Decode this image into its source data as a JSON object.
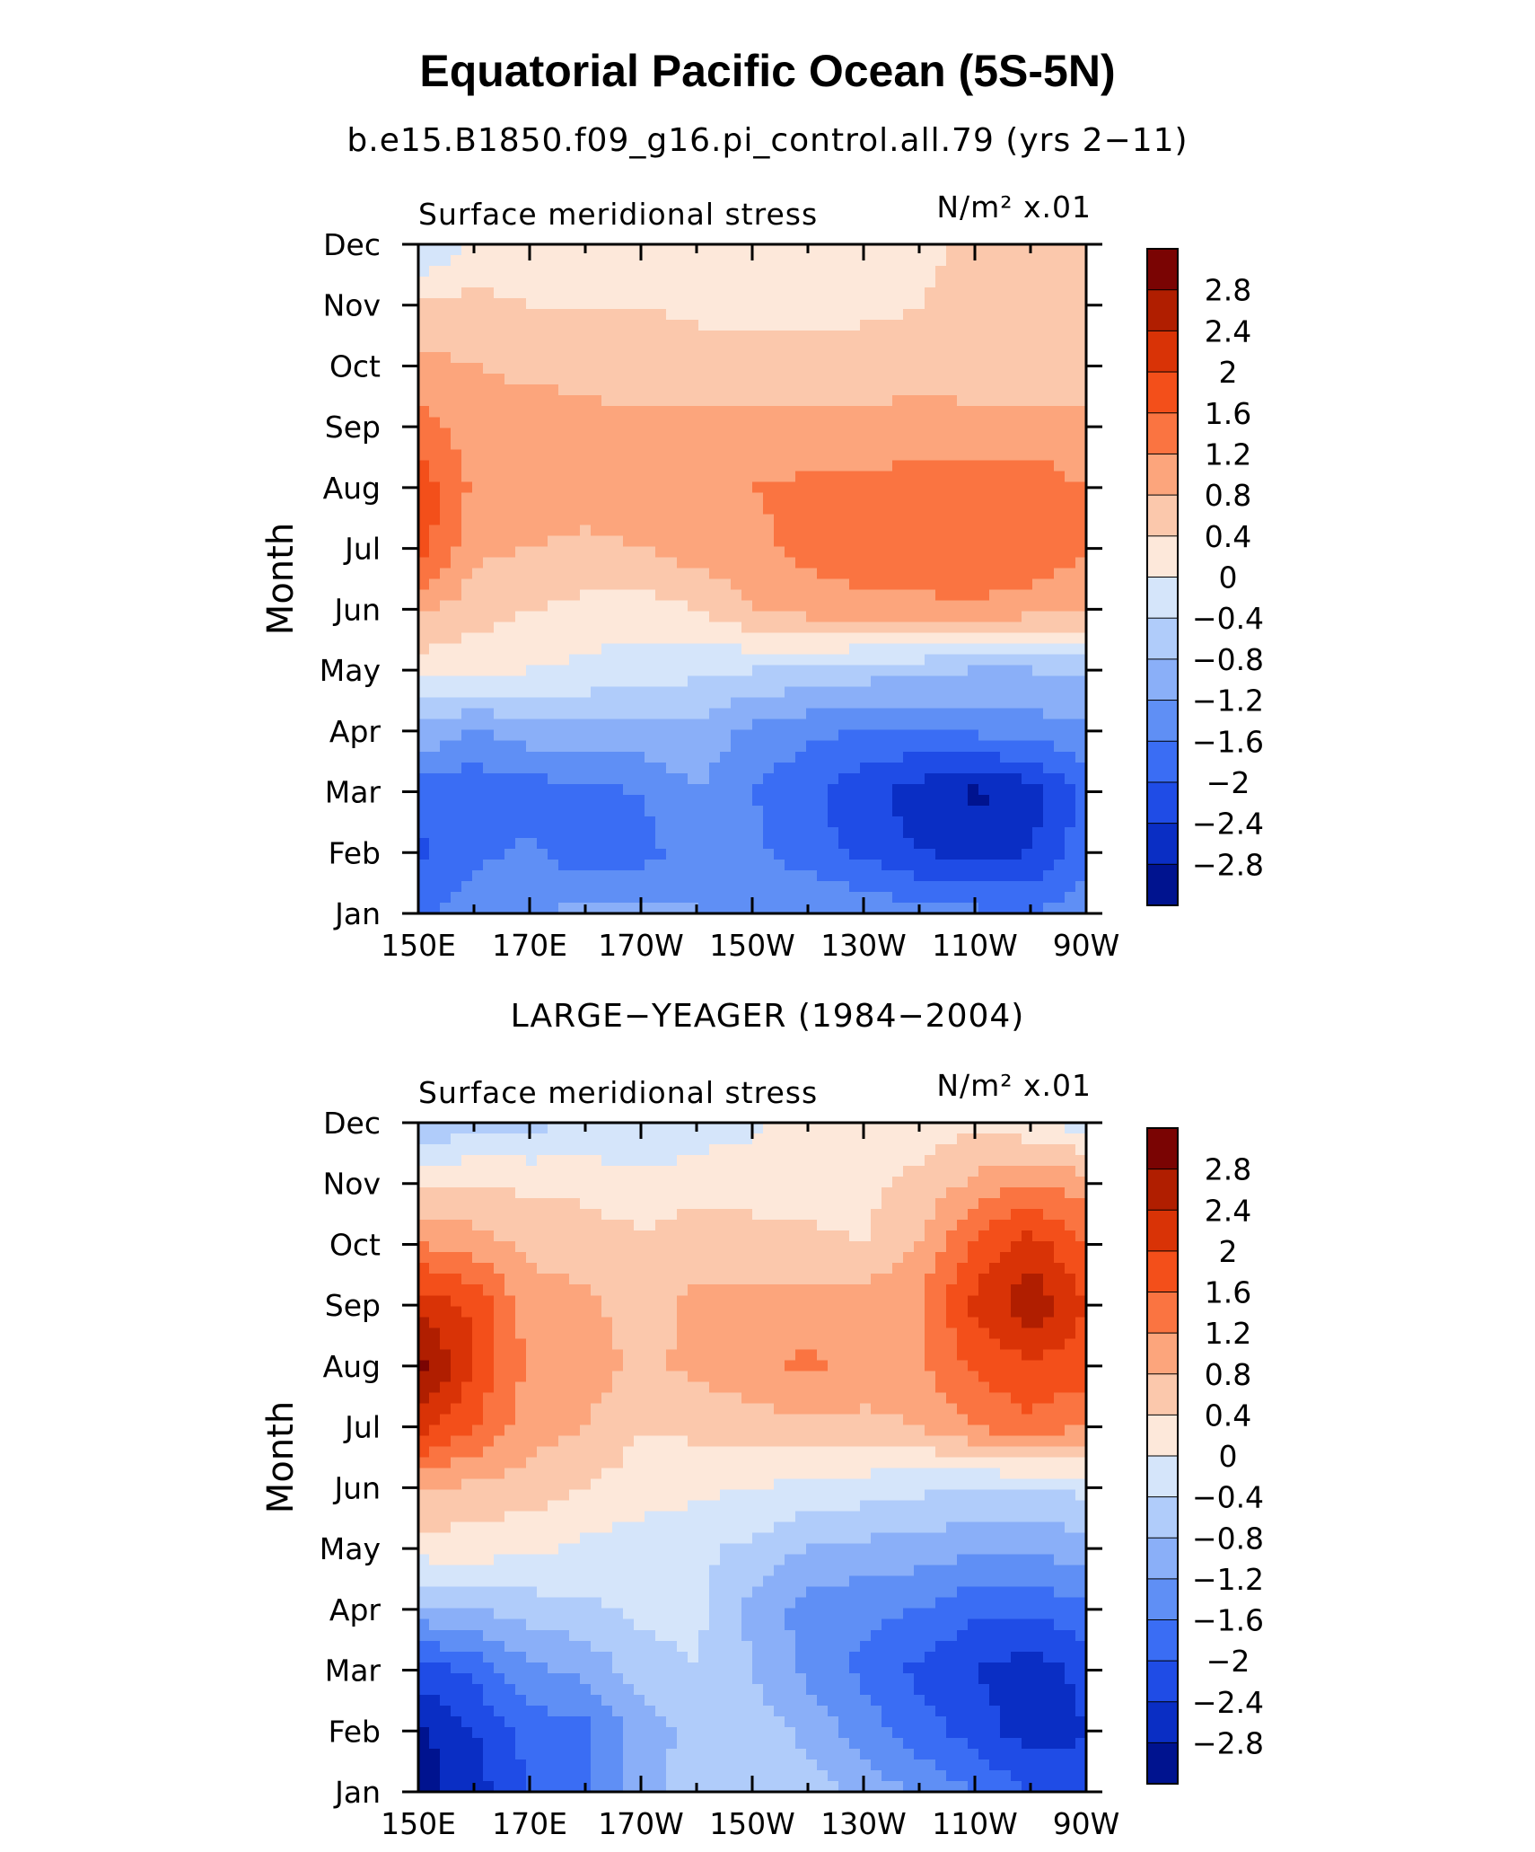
{
  "title": "Equatorial Pacific Ocean (5S-5N)",
  "colorbar": {
    "labels": [
      "2.8",
      "2.4",
      "2",
      "1.6",
      "1.2",
      "0.8",
      "0.4",
      "0",
      "−0.4",
      "−0.8",
      "−1.2",
      "−1.6",
      "−2",
      "−2.4",
      "−2.8"
    ],
    "colors": [
      "#7a0403",
      "#b01e00",
      "#d93306",
      "#f34f1a",
      "#fa7441",
      "#fca57c",
      "#fbc8ac",
      "#fde8da",
      "#d5e5fa",
      "#b0ccfa",
      "#8aaff8",
      "#5f8ff5",
      "#3a6df4",
      "#1f4ce6",
      "#0a2ec4",
      "#00138f"
    ]
  },
  "chart_data": [
    {
      "type": "heatmap",
      "title": "b.e15.B1850.f09_g16.pi_control.all.79 (yrs 2−11)",
      "left_label": "Surface meridional stress",
      "units_label": "N/m² x.01",
      "ylabel": "Month",
      "xlabel": "",
      "x_ticks": [
        "150E",
        "170E",
        "170W",
        "150W",
        "130W",
        "110W",
        "90W"
      ],
      "y_ticks": [
        "Jan",
        "Feb",
        "Mar",
        "Apr",
        "May",
        "Jun",
        "Jul",
        "Aug",
        "Sep",
        "Oct",
        "Nov",
        "Dec"
      ],
      "levels": [
        -2.8,
        -2.4,
        -2,
        -1.6,
        -1.2,
        -0.8,
        -0.4,
        0,
        0.4,
        0.8,
        1.2,
        1.6,
        2,
        2.4,
        2.8
      ],
      "x": [
        150,
        160,
        170,
        180,
        190,
        200,
        210,
        220,
        230,
        240,
        250,
        260,
        270
      ],
      "months": [
        "Jan",
        "Feb",
        "Mar",
        "Apr",
        "May",
        "Jun",
        "Jul",
        "Aug",
        "Sep",
        "Oct",
        "Nov",
        "Dec"
      ],
      "values": [
        [
          -1.8,
          -1.3,
          -1.2,
          -1.1,
          -1.0,
          -1.2,
          -1.3,
          -1.2,
          -1.3,
          -1.4,
          -1.5,
          -1.6,
          -1.3
        ],
        [
          -2.1,
          -1.7,
          -1.5,
          -1.9,
          -1.8,
          -1.3,
          -1.5,
          -1.8,
          -2.1,
          -2.4,
          -2.5,
          -2.4,
          -1.8
        ],
        [
          -1.8,
          -1.9,
          -1.8,
          -1.7,
          -1.6,
          -1.2,
          -1.6,
          -1.9,
          -2.3,
          -2.6,
          -2.9,
          -2.6,
          -1.8
        ],
        [
          -0.9,
          -1.2,
          -1.0,
          -0.9,
          -0.9,
          -0.9,
          -1.3,
          -1.5,
          -1.6,
          -1.6,
          -1.5,
          -1.4,
          -1.3
        ],
        [
          0.2,
          0.1,
          0.0,
          -0.1,
          -0.2,
          -0.3,
          -0.4,
          -0.5,
          -0.6,
          -0.7,
          -0.8,
          -0.8,
          -0.7
        ],
        [
          0.9,
          0.6,
          0.4,
          0.3,
          0.2,
          0.4,
          0.8,
          1.0,
          1.1,
          1.1,
          1.1,
          1.0,
          0.9
        ],
        [
          1.8,
          0.9,
          0.8,
          0.7,
          0.8,
          1.0,
          1.1,
          1.3,
          1.4,
          1.5,
          1.6,
          1.5,
          1.2
        ],
        [
          1.9,
          1.1,
          1.0,
          1.0,
          1.1,
          1.1,
          1.2,
          1.3,
          1.3,
          1.4,
          1.4,
          1.4,
          1.2
        ],
        [
          1.4,
          1.0,
          1.0,
          0.9,
          0.9,
          0.9,
          0.9,
          0.9,
          0.9,
          1.0,
          1.0,
          1.0,
          0.9
        ],
        [
          0.9,
          0.8,
          0.7,
          0.7,
          0.6,
          0.6,
          0.6,
          0.6,
          0.6,
          0.6,
          0.5,
          0.4,
          0.5
        ],
        [
          0.5,
          0.5,
          0.4,
          0.4,
          0.4,
          0.3,
          0.3,
          0.3,
          0.3,
          0.4,
          0.5,
          0.5,
          0.5
        ],
        [
          -0.5,
          0.1,
          0.2,
          0.2,
          0.2,
          0.2,
          0.2,
          0.2,
          0.2,
          0.3,
          0.5,
          0.6,
          0.4
        ]
      ]
    },
    {
      "type": "heatmap",
      "title": "LARGE−YEAGER (1984−2004)",
      "left_label": "Surface meridional stress",
      "units_label": "N/m² x.01",
      "ylabel": "Month",
      "xlabel": "",
      "x_ticks": [
        "150E",
        "170E",
        "170W",
        "150W",
        "130W",
        "110W",
        "90W"
      ],
      "y_ticks": [
        "Jan",
        "Feb",
        "Mar",
        "Apr",
        "May",
        "Jun",
        "Jul",
        "Aug",
        "Sep",
        "Oct",
        "Nov",
        "Dec"
      ],
      "levels": [
        -2.8,
        -2.4,
        -2,
        -1.6,
        -1.2,
        -0.8,
        -0.4,
        0,
        0.4,
        0.8,
        1.2,
        1.6,
        2,
        2.4,
        2.8
      ],
      "x": [
        150,
        160,
        170,
        180,
        190,
        200,
        210,
        220,
        230,
        240,
        250,
        260,
        270
      ],
      "months": [
        "Jan",
        "Feb",
        "Mar",
        "Apr",
        "May",
        "Jun",
        "Jul",
        "Aug",
        "Sep",
        "Oct",
        "Nov",
        "Dec"
      ],
      "values": [
        [
          -3.0,
          -2.6,
          -2.0,
          -1.6,
          -0.9,
          -0.6,
          -0.4,
          -0.6,
          -0.9,
          -1.3,
          -1.6,
          -2.0,
          -2.3
        ],
        [
          -2.9,
          -2.4,
          -1.8,
          -1.7,
          -1.0,
          -0.7,
          -0.6,
          -0.9,
          -1.4,
          -1.8,
          -2.2,
          -2.6,
          -2.4
        ],
        [
          -2.2,
          -1.9,
          -1.3,
          -1.1,
          -0.6,
          -0.4,
          -0.8,
          -1.3,
          -1.7,
          -2.1,
          -2.4,
          -2.6,
          -2.3
        ],
        [
          -0.9,
          -0.8,
          -0.6,
          -0.5,
          -0.3,
          -0.3,
          -0.9,
          -1.4,
          -1.5,
          -1.6,
          -1.9,
          -1.9,
          -1.7
        ],
        [
          0.2,
          0.2,
          0.1,
          -0.1,
          -0.2,
          -0.3,
          -0.5,
          -0.8,
          -0.9,
          -1.0,
          -1.1,
          -1.1,
          -1.0
        ],
        [
          0.9,
          0.7,
          0.6,
          0.4,
          0.2,
          0.1,
          0.0,
          -0.1,
          -0.2,
          -0.3,
          -0.4,
          -0.4,
          -0.3
        ],
        [
          2.2,
          1.6,
          1.0,
          0.8,
          0.4,
          0.5,
          0.6,
          0.7,
          0.7,
          0.8,
          1.2,
          1.5,
          1.2
        ],
        [
          3.0,
          2.0,
          1.1,
          1.0,
          0.7,
          0.9,
          1.1,
          1.3,
          1.0,
          1.1,
          1.7,
          1.9,
          1.8
        ],
        [
          2.3,
          1.9,
          1.0,
          0.9,
          0.6,
          0.9,
          1.0,
          0.9,
          1.0,
          1.2,
          2.1,
          2.7,
          2.0
        ],
        [
          1.2,
          1.0,
          0.7,
          0.6,
          0.5,
          0.6,
          0.5,
          0.5,
          0.4,
          0.8,
          1.7,
          2.2,
          1.6
        ],
        [
          0.3,
          0.4,
          0.3,
          0.3,
          0.1,
          0.3,
          0.3,
          0.2,
          0.3,
          0.5,
          0.9,
          1.2,
          1.0
        ],
        [
          -0.8,
          -0.6,
          -0.5,
          -0.4,
          -0.4,
          -0.3,
          -0.1,
          0.2,
          0.1,
          0.2,
          0.3,
          0.1,
          -0.2
        ]
      ]
    }
  ]
}
